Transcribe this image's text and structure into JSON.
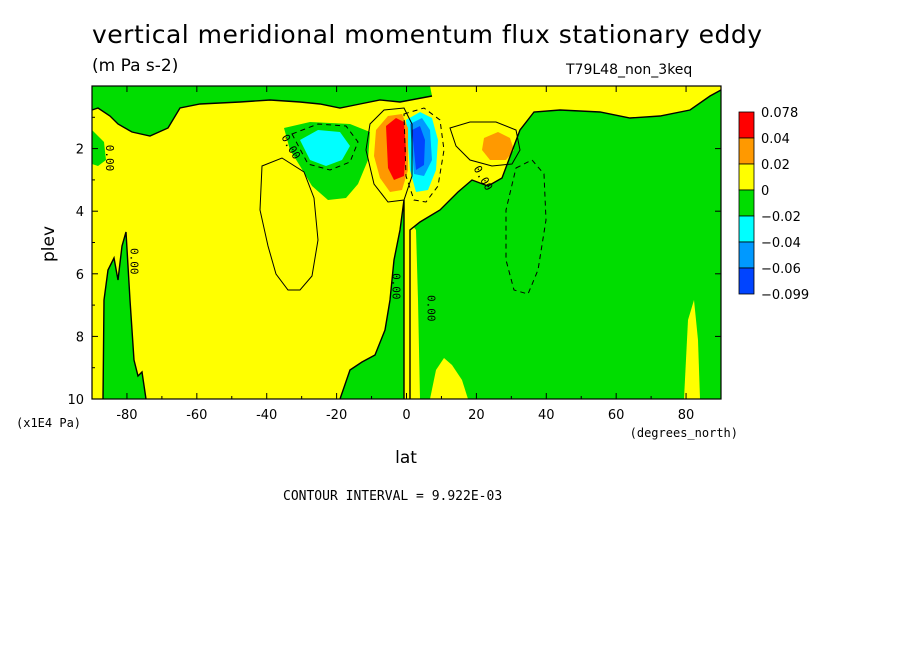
{
  "title": "vertical meridional momentum flux stationary eddy",
  "units": "(m Pa s-2)",
  "run_label": "T79L48_non_3keq",
  "contour_interval": "CONTOUR INTERVAL = 9.922E-03",
  "chart_data": {
    "type": "heatmap",
    "xlabel": "lat",
    "x_units": "(degrees_north)",
    "ylabel": "plev",
    "y_units": "(x1E4 Pa)",
    "xlim": [
      -90,
      90
    ],
    "ylim": [
      0,
      10
    ],
    "y_reversed": true,
    "x_ticks": [
      -80,
      -60,
      -40,
      -20,
      0,
      20,
      40,
      60,
      80
    ],
    "y_ticks": [
      2,
      4,
      6,
      8,
      10
    ],
    "legend": {
      "placement": "right",
      "labels": [
        "0.078",
        "0.04",
        "0.02",
        "0",
        "−0.02",
        "−0.04",
        "−0.06",
        "−0.099"
      ],
      "colors": [
        "#ff0000",
        "#ff9900",
        "#ffff00",
        "#00dd00",
        "#00ffff",
        "#0099ff",
        "#0044ff"
      ]
    },
    "contour_labels": [
      {
        "text": "0.00",
        "lat": -86,
        "plev": 2.3,
        "rotate": 90
      },
      {
        "text": "0.00",
        "lat": -34,
        "plev": 2.0,
        "rotate": 60
      },
      {
        "text": "0.00",
        "lat": -79,
        "plev": 5.6,
        "rotate": 90
      },
      {
        "text": "0.00",
        "lat": -4,
        "plev": 6.4,
        "rotate": 90
      },
      {
        "text": "0.00",
        "lat": 6,
        "plev": 7.1,
        "rotate": 90
      },
      {
        "text": "0.00",
        "lat": 21,
        "plev": 3.0,
        "rotate": 60
      }
    ]
  }
}
